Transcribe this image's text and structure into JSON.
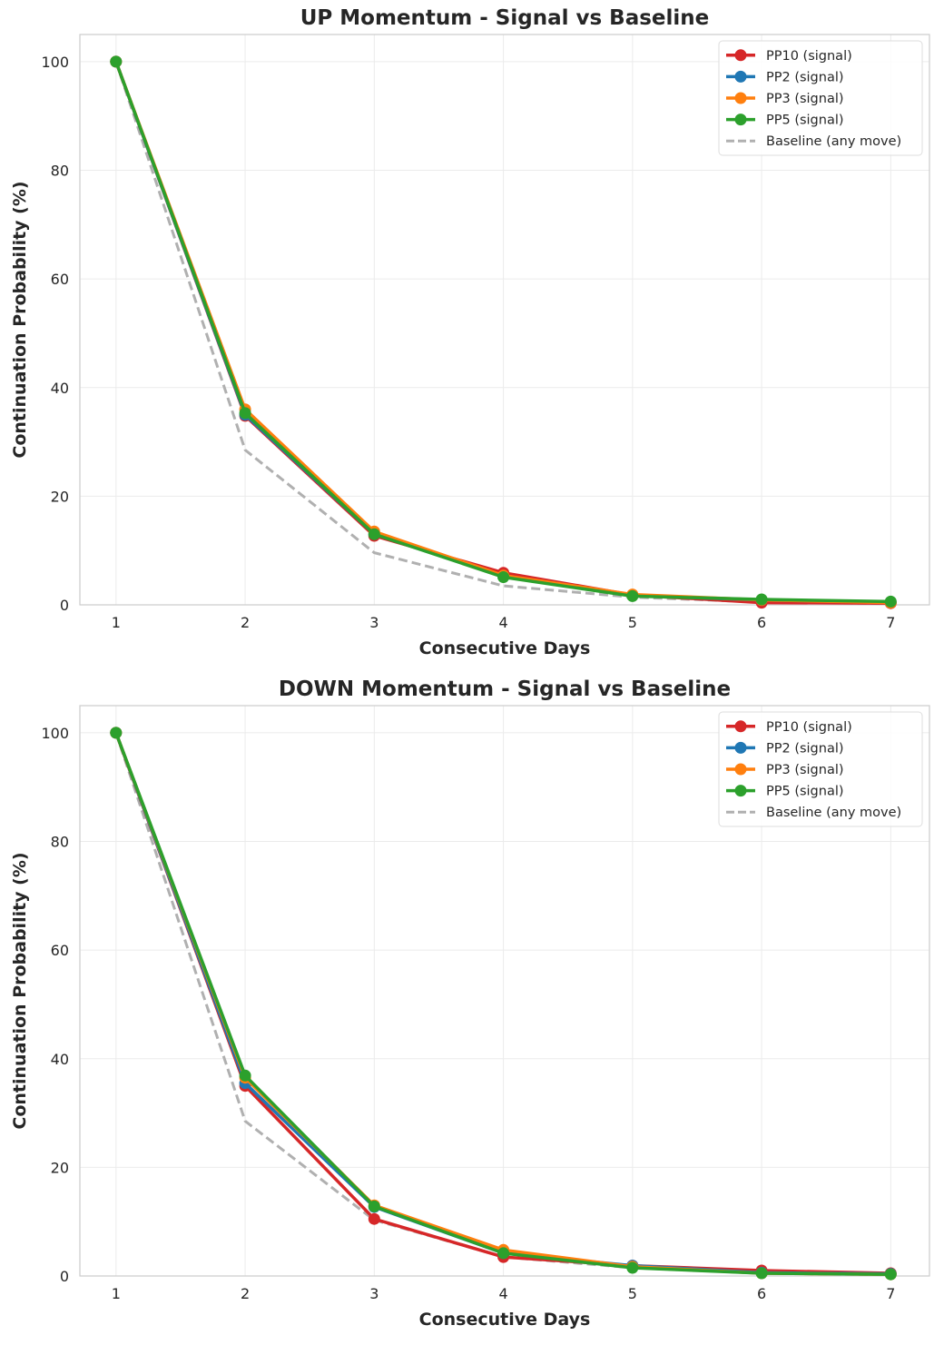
{
  "chart_data": [
    {
      "type": "line",
      "title": "UP Momentum - Signal vs Baseline",
      "xlabel": "Consecutive Days",
      "ylabel": "Continuation Probability (%)",
      "x": [
        1,
        2,
        3,
        4,
        5,
        6,
        7
      ],
      "xticks": [
        "1",
        "2",
        "3",
        "4",
        "5",
        "6",
        "7"
      ],
      "yticks": [
        "0",
        "20",
        "40",
        "60",
        "80",
        "100"
      ],
      "xlim": [
        0.72,
        7.3
      ],
      "ylim": [
        0,
        105
      ],
      "grid": true,
      "legend_position": "top-right",
      "series": [
        {
          "name": "PP10 (signal)",
          "color": "#d62728",
          "style": "solid-marker",
          "values": [
            100,
            34.8,
            12.7,
            5.9,
            1.8,
            0.4,
            0.3
          ]
        },
        {
          "name": "PP2 (signal)",
          "color": "#1f77b4",
          "style": "solid-marker",
          "values": [
            100,
            35.0,
            13.0,
            5.2,
            1.7,
            0.9,
            0.5
          ]
        },
        {
          "name": "PP3 (signal)",
          "color": "#ff7f0e",
          "style": "solid-marker",
          "values": [
            100,
            36.0,
            13.5,
            5.4,
            1.9,
            0.9,
            0.4
          ]
        },
        {
          "name": "PP5 (signal)",
          "color": "#2ca02c",
          "style": "solid-marker",
          "values": [
            100,
            35.3,
            13.0,
            5.1,
            1.6,
            1.0,
            0.6
          ]
        },
        {
          "name": "Baseline (any move)",
          "color": "#b0b0b0",
          "style": "dashed",
          "values": [
            100,
            28.5,
            9.6,
            3.5,
            1.4,
            0.5,
            0.2
          ]
        }
      ]
    },
    {
      "type": "line",
      "title": "DOWN Momentum - Signal vs Baseline",
      "xlabel": "Consecutive Days",
      "ylabel": "Continuation Probability (%)",
      "x": [
        1,
        2,
        3,
        4,
        5,
        6,
        7
      ],
      "xticks": [
        "1",
        "2",
        "3",
        "4",
        "5",
        "6",
        "7"
      ],
      "yticks": [
        "0",
        "20",
        "40",
        "60",
        "80",
        "100"
      ],
      "xlim": [
        0.72,
        7.3
      ],
      "ylim": [
        0,
        105
      ],
      "grid": true,
      "legend_position": "top-right",
      "series": [
        {
          "name": "PP10 (signal)",
          "color": "#d62728",
          "style": "solid-marker",
          "values": [
            100,
            35.0,
            10.5,
            3.5,
            1.9,
            1.0,
            0.5
          ]
        },
        {
          "name": "PP2 (signal)",
          "color": "#1f77b4",
          "style": "solid-marker",
          "values": [
            100,
            35.5,
            12.7,
            4.2,
            1.9,
            0.6,
            0.4
          ]
        },
        {
          "name": "PP3 (signal)",
          "color": "#ff7f0e",
          "style": "solid-marker",
          "values": [
            100,
            36.5,
            13.0,
            4.8,
            1.7,
            0.5,
            0.3
          ]
        },
        {
          "name": "PP5 (signal)",
          "color": "#2ca02c",
          "style": "solid-marker",
          "values": [
            100,
            36.9,
            12.8,
            4.2,
            1.5,
            0.5,
            0.3
          ]
        },
        {
          "name": "Baseline (any move)",
          "color": "#b0b0b0",
          "style": "dashed",
          "values": [
            100,
            28.5,
            10.3,
            3.5,
            1.5,
            0.5,
            0.2
          ]
        }
      ]
    }
  ]
}
